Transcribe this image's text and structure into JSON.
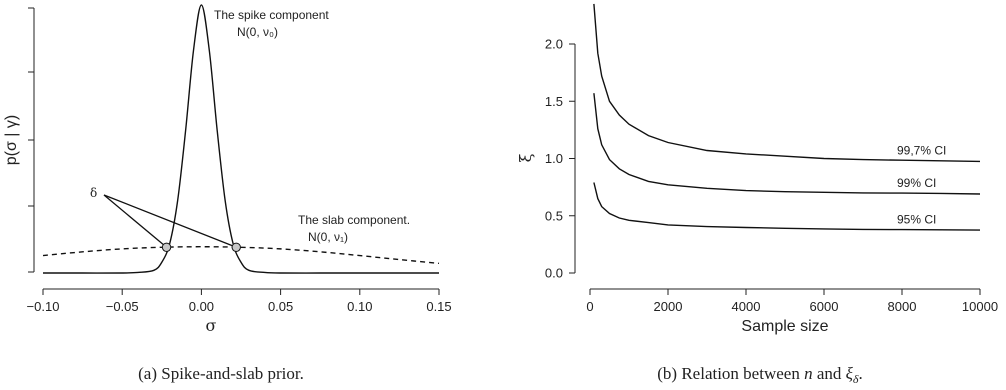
{
  "chart_data": [
    {
      "type": "line",
      "caption": "(a) Spike-and-slab prior.",
      "xlabel": "σ",
      "ylabel": "p(σ | γ)",
      "xlim": [
        -0.1,
        0.15
      ],
      "x_ticks": [
        "-0.10",
        "-0.05",
        "0.00",
        "0.05",
        "0.10",
        "0.15"
      ],
      "y_ticks_labeled": false,
      "series": [
        {
          "style": "solid",
          "x": [
            -0.1,
            -0.075,
            -0.05,
            -0.04,
            -0.03,
            -0.025,
            -0.02,
            -0.015,
            -0.01,
            -0.005,
            0.0,
            0.005,
            0.01,
            0.015,
            0.02,
            0.025,
            0.03,
            0.04,
            0.05,
            0.075,
            0.1,
            0.125,
            0.15
          ],
          "y": [
            0.0,
            0.0,
            0.0,
            0.002,
            0.01,
            0.04,
            0.11,
            0.27,
            0.53,
            0.83,
            1.0,
            0.83,
            0.53,
            0.27,
            0.11,
            0.04,
            0.01,
            0.002,
            0.0,
            0.0,
            0.0,
            0.0,
            0.0
          ]
        },
        {
          "style": "dashed",
          "x": [
            -0.1,
            -0.075,
            -0.05,
            -0.025,
            0.0,
            0.025,
            0.05,
            0.075,
            0.1,
            0.125,
            0.15
          ],
          "y": [
            0.065,
            0.079,
            0.09,
            0.096,
            0.098,
            0.096,
            0.09,
            0.079,
            0.065,
            0.05,
            0.036
          ]
        }
      ],
      "intersections": [
        {
          "x": -0.022,
          "y": 0.096
        },
        {
          "x": 0.022,
          "y": 0.096
        }
      ],
      "annotations": {
        "delta": "δ",
        "spike_title": "The spike component",
        "spike_formula": "N(0, ν₀)",
        "slab_title": "The slab component.",
        "slab_formula": "N(0, ν₁)"
      }
    },
    {
      "type": "line",
      "caption": "(b) Relation between n and ξδ.",
      "xlabel": "Sample size",
      "ylabel": "ξ",
      "xlim": [
        0,
        10000
      ],
      "ylim": [
        0,
        2.3
      ],
      "x_ticks": [
        "0",
        "2000",
        "4000",
        "6000",
        "8000",
        "10000"
      ],
      "y_ticks": [
        "0.0",
        "0.5",
        "1.0",
        "1.5",
        "2.0"
      ],
      "series": [
        {
          "name": "99,7% CI",
          "x": [
            100,
            200,
            300,
            500,
            750,
            1000,
            1500,
            2000,
            3000,
            4000,
            5000,
            6000,
            7000,
            8000,
            9000,
            10000
          ],
          "y": [
            2.35,
            1.92,
            1.72,
            1.5,
            1.38,
            1.3,
            1.2,
            1.14,
            1.07,
            1.04,
            1.02,
            1.0,
            0.99,
            0.985,
            0.98,
            0.975
          ]
        },
        {
          "name": "99% CI",
          "x": [
            100,
            200,
            300,
            500,
            750,
            1000,
            1500,
            2000,
            3000,
            4000,
            5000,
            6000,
            7000,
            8000,
            9000,
            10000
          ],
          "y": [
            1.57,
            1.26,
            1.12,
            0.99,
            0.91,
            0.86,
            0.8,
            0.77,
            0.74,
            0.72,
            0.71,
            0.705,
            0.7,
            0.698,
            0.695,
            0.69
          ]
        },
        {
          "name": "95% CI",
          "x": [
            100,
            200,
            300,
            500,
            750,
            1000,
            1500,
            2000,
            3000,
            4000,
            5000,
            6000,
            7000,
            8000,
            9000,
            10000
          ],
          "y": [
            0.79,
            0.65,
            0.58,
            0.52,
            0.48,
            0.46,
            0.44,
            0.42,
            0.405,
            0.397,
            0.39,
            0.385,
            0.381,
            0.379,
            0.377,
            0.375
          ]
        }
      ],
      "caption_parts": {
        "prefix": "(b) Relation between ",
        "n": "n",
        "middle": " and ",
        "xi": "ξ",
        "sub": "δ",
        "suffix": "."
      }
    }
  ]
}
